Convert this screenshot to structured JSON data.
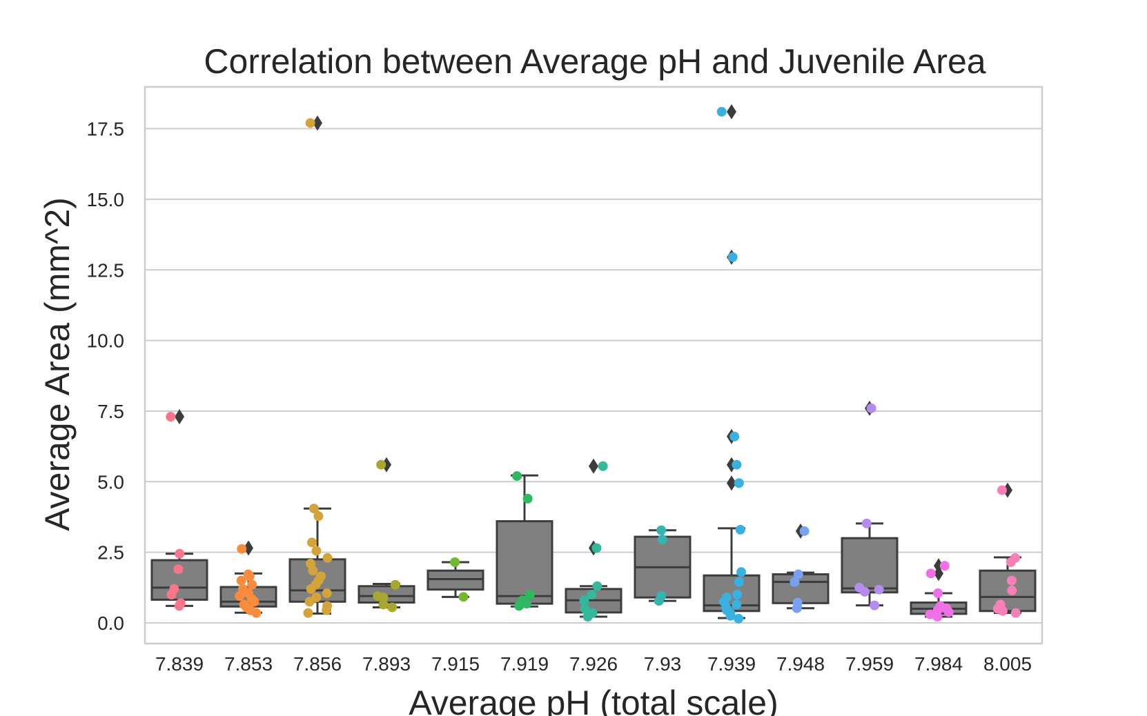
{
  "chart_data": {
    "type": "box",
    "title": "Correlation between Average pH and Juvenile Area",
    "xlabel": "Average pH (total scale)",
    "ylabel": "Average Area (mm^2)",
    "ylim": [
      -0.75,
      19.0
    ],
    "yticks": [
      "0.0",
      "2.5",
      "5.0",
      "7.5",
      "10.0",
      "12.5",
      "15.0",
      "17.5"
    ],
    "grid": true,
    "categories": [
      "7.839",
      "7.853",
      "7.856",
      "7.893",
      "7.915",
      "7.919",
      "7.926",
      "7.93",
      "7.939",
      "7.948",
      "7.959",
      "7.984",
      "8.005"
    ],
    "colors": [
      "#f7768a",
      "#f88c3c",
      "#d4a43a",
      "#a8a830",
      "#74b830",
      "#30b860",
      "#34b89c",
      "#36b4b0",
      "#3ab0e0",
      "#78a0f4",
      "#b48cf0",
      "#f070e8",
      "#f880b8"
    ],
    "boxes": [
      {
        "q1": 0.82,
        "median": 1.25,
        "q3": 2.22,
        "whisker_low": 0.6,
        "whisker_high": 2.45,
        "fliers": [
          7.3
        ]
      },
      {
        "q1": 0.58,
        "median": 0.75,
        "q3": 1.27,
        "whisker_low": 0.36,
        "whisker_high": 1.75,
        "fliers": [
          2.65
        ]
      },
      {
        "q1": 0.75,
        "median": 1.15,
        "q3": 2.25,
        "whisker_low": 0.33,
        "whisker_high": 4.05,
        "fliers": [
          17.7
        ]
      },
      {
        "q1": 0.72,
        "median": 0.95,
        "q3": 1.3,
        "whisker_low": 0.55,
        "whisker_high": 1.38,
        "fliers": [
          5.6
        ]
      },
      {
        "q1": 1.18,
        "median": 1.55,
        "q3": 1.85,
        "whisker_low": 0.92,
        "whisker_high": 2.15,
        "fliers": []
      },
      {
        "q1": 0.68,
        "median": 0.95,
        "q3": 3.6,
        "whisker_low": 0.58,
        "whisker_high": 5.22,
        "fliers": []
      },
      {
        "q1": 0.37,
        "median": 0.8,
        "q3": 1.2,
        "whisker_low": 0.22,
        "whisker_high": 1.3,
        "fliers": [
          2.65,
          5.55
        ]
      },
      {
        "q1": 0.9,
        "median": 1.97,
        "q3": 3.05,
        "whisker_low": 0.78,
        "whisker_high": 3.28,
        "fliers": []
      },
      {
        "q1": 0.42,
        "median": 0.62,
        "q3": 1.68,
        "whisker_low": 0.17,
        "whisker_high": 3.35,
        "fliers": [
          4.95,
          5.6,
          6.6,
          12.95,
          18.1
        ]
      },
      {
        "q1": 0.7,
        "median": 1.45,
        "q3": 1.72,
        "whisker_low": 0.52,
        "whisker_high": 1.78,
        "fliers": [
          3.25
        ]
      },
      {
        "q1": 1.08,
        "median": 1.22,
        "q3": 3.0,
        "whisker_low": 0.62,
        "whisker_high": 3.52,
        "fliers": [
          7.6
        ]
      },
      {
        "q1": 0.32,
        "median": 0.5,
        "q3": 0.72,
        "whisker_low": 0.22,
        "whisker_high": 1.05,
        "fliers": [
          1.75,
          2.02
        ]
      },
      {
        "q1": 0.42,
        "median": 0.92,
        "q3": 1.85,
        "whisker_low": 0.35,
        "whisker_high": 2.32,
        "fliers": [
          4.7
        ]
      }
    ],
    "points": [
      [
        0.6,
        0.7,
        1.0,
        1.2,
        1.9,
        2.45,
        7.3
      ],
      [
        0.35,
        0.45,
        0.55,
        0.65,
        0.75,
        0.85,
        0.95,
        1.05,
        1.2,
        1.35,
        1.5,
        1.65,
        1.72,
        2.62
      ],
      [
        0.35,
        0.45,
        0.6,
        0.75,
        0.9,
        1.05,
        1.2,
        1.35,
        1.5,
        1.65,
        1.85,
        2.1,
        2.3,
        2.55,
        2.85,
        3.78,
        4.05,
        17.7
      ],
      [
        0.55,
        0.65,
        0.9,
        0.95,
        1.35,
        5.6
      ],
      [
        0.92,
        2.15
      ],
      [
        0.6,
        0.68,
        0.8,
        1.0,
        4.4,
        5.2
      ],
      [
        0.22,
        0.35,
        0.5,
        0.8,
        1.0,
        1.3,
        2.65,
        5.55
      ],
      [
        0.78,
        0.95,
        2.95,
        3.28
      ],
      [
        0.15,
        0.25,
        0.35,
        0.45,
        0.55,
        0.65,
        0.75,
        0.9,
        1.0,
        1.45,
        1.8,
        3.3,
        4.95,
        5.6,
        6.6,
        12.95,
        18.1
      ],
      [
        0.52,
        0.72,
        1.45,
        1.72,
        3.25
      ],
      [
        0.62,
        1.1,
        1.18,
        1.25,
        3.52,
        7.6
      ],
      [
        0.22,
        0.3,
        0.38,
        0.45,
        0.52,
        0.6,
        1.05,
        1.75,
        2.02
      ],
      [
        0.35,
        0.42,
        0.5,
        0.65,
        1.15,
        1.5,
        2.15,
        2.3,
        4.7
      ]
    ]
  }
}
